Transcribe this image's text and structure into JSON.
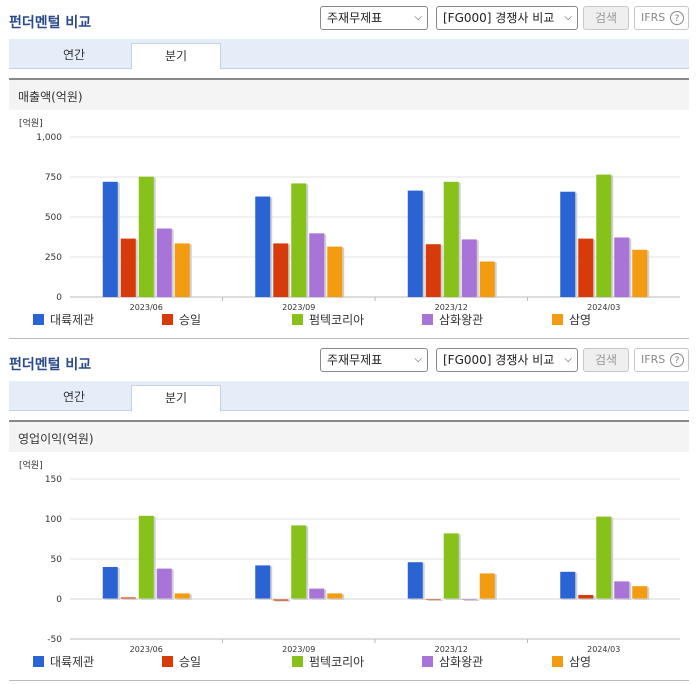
{
  "panels": [
    {
      "title": "펀더멘털 비교",
      "select1": "주재무제표",
      "select2": "[FG000] 경쟁사 비교",
      "search_btn": "검색",
      "ifrs": "IFRS",
      "ifrs_help": "?",
      "tabs": [
        "연간",
        "분기"
      ],
      "active_tab": 1,
      "chart_title": "매출액(억원)"
    },
    {
      "title": "펀더멘털 비교",
      "select1": "주재무제표",
      "select2": "[FG000] 경쟁사 비교",
      "search_btn": "검색",
      "ifrs": "IFRS",
      "ifrs_help": "?",
      "tabs": [
        "연간",
        "분기"
      ],
      "active_tab": 1,
      "chart_title": "영업이익(억원)"
    }
  ],
  "chart_data": [
    {
      "type": "bar",
      "title": "매출액(억원)",
      "ylabel": "[억원]",
      "ylim": [
        0,
        1000
      ],
      "yticks": [
        0,
        250,
        500,
        750,
        1000
      ],
      "ytick_labels": [
        "0",
        "250",
        "500",
        "750",
        "1,000"
      ],
      "categories": [
        "2023/06",
        "2023/09",
        "2023/12",
        "2024/03"
      ],
      "legend": "bottom",
      "series": [
        {
          "name": "대륙제관",
          "color": "#2a63d4",
          "values": [
            720,
            628,
            665,
            658
          ]
        },
        {
          "name": "승일",
          "color": "#d83b0b",
          "values": [
            365,
            335,
            330,
            365
          ]
        },
        {
          "name": "펌텍코리아",
          "color": "#86c21a",
          "values": [
            752,
            710,
            720,
            765
          ]
        },
        {
          "name": "삼화왕관",
          "color": "#a874d8",
          "values": [
            428,
            398,
            360,
            372
          ]
        },
        {
          "name": "삼영",
          "color": "#f39c12",
          "values": [
            335,
            315,
            222,
            295
          ]
        }
      ]
    },
    {
      "type": "bar",
      "title": "영업이익(억원)",
      "ylabel": "[억원]",
      "ylim": [
        -50,
        150
      ],
      "yticks": [
        -50,
        0,
        50,
        100,
        150
      ],
      "ytick_labels": [
        "-50",
        "0",
        "50",
        "100",
        "150"
      ],
      "categories": [
        "2023/06",
        "2023/09",
        "2023/12",
        "2024/03"
      ],
      "legend": "bottom",
      "series": [
        {
          "name": "대륙제관",
          "color": "#2a63d4",
          "values": [
            40,
            42,
            46,
            34
          ]
        },
        {
          "name": "승일",
          "color": "#d83b0b",
          "values": [
            2,
            -2,
            -1,
            5
          ]
        },
        {
          "name": "펌텍코리아",
          "color": "#86c21a",
          "values": [
            104,
            92,
            82,
            103
          ]
        },
        {
          "name": "삼화왕관",
          "color": "#a874d8",
          "values": [
            38,
            13,
            -1,
            22
          ]
        },
        {
          "name": "삼영",
          "color": "#f39c12",
          "values": [
            7,
            7,
            32,
            16
          ]
        }
      ]
    }
  ]
}
